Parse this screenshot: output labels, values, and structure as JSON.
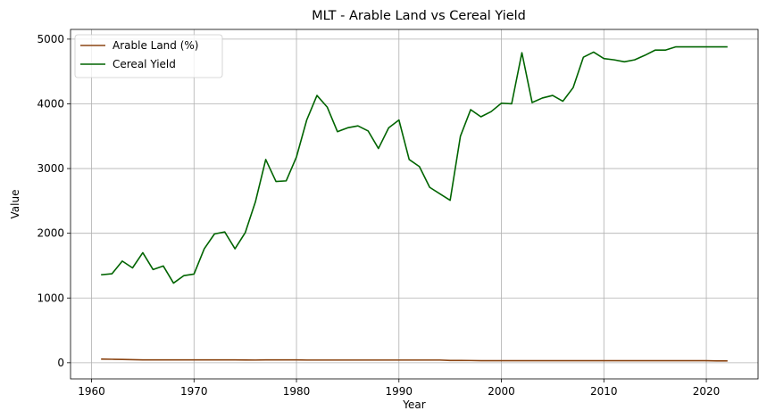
{
  "chart_data": {
    "type": "line",
    "title": "MLT - Arable Land vs Cereal Yield",
    "xlabel": "Year",
    "ylabel": "Value",
    "xlim": [
      1957.95,
      2025.05
    ],
    "ylim": [
      -250,
      5150
    ],
    "xticks": [
      1960,
      1970,
      1980,
      1990,
      2000,
      2010,
      2020
    ],
    "yticks": [
      0,
      1000,
      2000,
      3000,
      4000,
      5000
    ],
    "grid": true,
    "legend_position": "top-left",
    "x": [
      1961,
      1962,
      1963,
      1964,
      1965,
      1966,
      1967,
      1968,
      1969,
      1970,
      1971,
      1972,
      1973,
      1974,
      1975,
      1976,
      1977,
      1978,
      1979,
      1980,
      1981,
      1982,
      1983,
      1984,
      1985,
      1986,
      1987,
      1988,
      1989,
      1990,
      1991,
      1992,
      1993,
      1994,
      1995,
      1996,
      1997,
      1998,
      1999,
      2000,
      2001,
      2002,
      2003,
      2004,
      2005,
      2006,
      2007,
      2008,
      2009,
      2010,
      2011,
      2012,
      2013,
      2014,
      2015,
      2016,
      2017,
      2018,
      2019,
      2020,
      2021,
      2022
    ],
    "series": [
      {
        "name": "Arable Land (%)",
        "color": "#8B4513",
        "values": [
          56,
          53,
          50,
          47,
          44,
          44,
          44,
          44,
          44,
          44,
          44,
          44,
          44,
          44,
          42,
          41,
          44,
          44,
          44,
          44,
          41,
          41,
          41,
          41,
          41,
          41,
          41,
          41,
          41,
          41,
          41,
          41,
          41,
          41,
          35,
          35,
          34,
          31,
          31,
          31,
          31,
          31,
          31,
          31,
          31,
          31,
          31,
          31,
          31,
          31,
          31,
          31,
          31,
          31,
          31,
          31,
          31,
          31,
          31,
          31,
          28,
          28
        ]
      },
      {
        "name": "Cereal Yield",
        "color": "#006400",
        "values": [
          1360,
          1375,
          1570,
          1465,
          1700,
          1440,
          1495,
          1230,
          1345,
          1370,
          1760,
          1990,
          2020,
          1760,
          2010,
          2490,
          3140,
          2800,
          2810,
          3180,
          3750,
          4130,
          3950,
          3570,
          3630,
          3660,
          3580,
          3310,
          3630,
          3750,
          3140,
          3030,
          2710,
          2610,
          2510,
          3500,
          3910,
          3800,
          3880,
          4010,
          4000,
          4790,
          4020,
          4090,
          4130,
          4040,
          4250,
          4720,
          4800,
          4700,
          4680,
          4650,
          4680,
          4750,
          4830,
          4830,
          4880,
          4880,
          4880,
          4880,
          4880,
          4880
        ]
      }
    ]
  }
}
